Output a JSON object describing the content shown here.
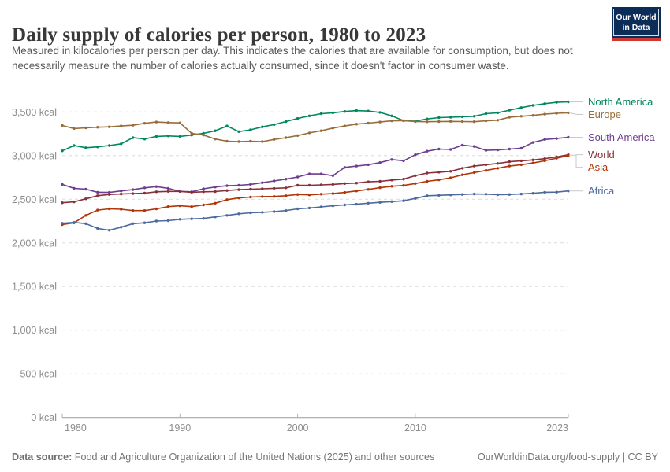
{
  "header": {
    "title": "Daily supply of calories per person, 1980 to 2023",
    "subtitle": "Measured in kilocalories per person per day. This indicates the calories that are available for consumption, but does not necessarily measure the number of calories actually consumed, since it doesn't factor in consumer waste.",
    "logo": {
      "line1": "Our World",
      "line2": "in Data",
      "bg_color": "#0d2d59",
      "stripe_color": "#cf3832"
    }
  },
  "chart_data": {
    "type": "line",
    "title": "Daily supply of calories per person, 1980 to 2023",
    "unit": "kcal",
    "grid": "horizontal-dashed",
    "legend_position": "right",
    "xlim": [
      1980,
      2023
    ],
    "ylim": [
      0,
      3500
    ],
    "x": [
      1980,
      1981,
      1982,
      1983,
      1984,
      1985,
      1986,
      1987,
      1988,
      1989,
      1990,
      1991,
      1992,
      1993,
      1994,
      1995,
      1996,
      1997,
      1998,
      1999,
      2000,
      2001,
      2002,
      2003,
      2004,
      2005,
      2006,
      2007,
      2008,
      2009,
      2010,
      2011,
      2012,
      2013,
      2014,
      2015,
      2016,
      2017,
      2018,
      2019,
      2020,
      2021,
      2022,
      2023
    ],
    "series": [
      {
        "name": "North America",
        "color": "#00875E",
        "values": [
          3055,
          3115,
          3090,
          3100,
          3115,
          3135,
          3205,
          3190,
          3220,
          3225,
          3220,
          3235,
          3255,
          3285,
          3340,
          3275,
          3295,
          3330,
          3355,
          3390,
          3425,
          3455,
          3480,
          3490,
          3505,
          3515,
          3510,
          3495,
          3455,
          3400,
          3395,
          3420,
          3435,
          3440,
          3445,
          3450,
          3480,
          3490,
          3520,
          3550,
          3575,
          3595,
          3610,
          3615
        ]
      },
      {
        "name": "Europe",
        "color": "#996D39",
        "values": [
          3345,
          3310,
          3318,
          3325,
          3330,
          3340,
          3348,
          3370,
          3385,
          3378,
          3375,
          3255,
          3235,
          3190,
          3165,
          3160,
          3165,
          3160,
          3185,
          3205,
          3230,
          3260,
          3285,
          3315,
          3340,
          3360,
          3372,
          3385,
          3398,
          3400,
          3390,
          3388,
          3390,
          3392,
          3390,
          3388,
          3398,
          3405,
          3440,
          3450,
          3460,
          3475,
          3485,
          3490
        ]
      },
      {
        "name": "South America",
        "color": "#6D3E91",
        "values": [
          2670,
          2625,
          2615,
          2580,
          2578,
          2595,
          2610,
          2630,
          2645,
          2625,
          2590,
          2585,
          2620,
          2640,
          2655,
          2660,
          2670,
          2690,
          2710,
          2730,
          2755,
          2790,
          2790,
          2770,
          2865,
          2880,
          2895,
          2920,
          2955,
          2940,
          3010,
          3050,
          3075,
          3070,
          3120,
          3105,
          3060,
          3065,
          3075,
          3085,
          3150,
          3185,
          3195,
          3210
        ]
      },
      {
        "name": "World",
        "color": "#883039",
        "values": [
          2460,
          2470,
          2505,
          2540,
          2555,
          2560,
          2565,
          2570,
          2585,
          2590,
          2590,
          2580,
          2585,
          2588,
          2600,
          2610,
          2615,
          2620,
          2625,
          2630,
          2660,
          2660,
          2665,
          2670,
          2680,
          2685,
          2700,
          2705,
          2720,
          2730,
          2770,
          2800,
          2810,
          2820,
          2855,
          2880,
          2895,
          2910,
          2930,
          2940,
          2950,
          2965,
          2985,
          3010
        ]
      },
      {
        "name": "Asia",
        "color": "#B13507",
        "values": [
          2210,
          2230,
          2315,
          2375,
          2390,
          2385,
          2370,
          2370,
          2390,
          2415,
          2425,
          2415,
          2435,
          2455,
          2495,
          2515,
          2525,
          2530,
          2532,
          2540,
          2555,
          2550,
          2558,
          2565,
          2578,
          2595,
          2612,
          2632,
          2648,
          2658,
          2680,
          2705,
          2722,
          2745,
          2780,
          2805,
          2830,
          2855,
          2880,
          2895,
          2915,
          2940,
          2970,
          3000
        ]
      },
      {
        "name": "Africa",
        "color": "#4C6A9C",
        "values": [
          2225,
          2235,
          2220,
          2165,
          2145,
          2180,
          2220,
          2230,
          2250,
          2255,
          2270,
          2275,
          2280,
          2298,
          2315,
          2333,
          2345,
          2350,
          2358,
          2370,
          2390,
          2400,
          2412,
          2425,
          2435,
          2443,
          2455,
          2465,
          2473,
          2483,
          2510,
          2540,
          2545,
          2550,
          2555,
          2560,
          2558,
          2552,
          2555,
          2560,
          2568,
          2580,
          2582,
          2595
        ]
      }
    ],
    "yticks": [
      {
        "value": 0,
        "label": "0 kcal"
      },
      {
        "value": 500,
        "label": "500 kcal"
      },
      {
        "value": 1000,
        "label": "1,000 kcal"
      },
      {
        "value": 1500,
        "label": "1,500 kcal"
      },
      {
        "value": 2000,
        "label": "2,000 kcal"
      },
      {
        "value": 2500,
        "label": "2,500 kcal"
      },
      {
        "value": 3000,
        "label": "3,000 kcal"
      },
      {
        "value": 3500,
        "label": "3,500 kcal"
      }
    ],
    "xticks": [
      {
        "value": 1980,
        "label": "1980"
      },
      {
        "value": 1990,
        "label": "1990"
      },
      {
        "value": 2000,
        "label": "2000"
      },
      {
        "value": 2010,
        "label": "2010"
      },
      {
        "value": 2023,
        "label": "2023"
      }
    ]
  },
  "footer": {
    "source_label": "Data source:",
    "source_text": " Food and Agriculture Organization of the United Nations (2025) and other sources",
    "link": "OurWorldinData.org/food-supply",
    "separator": " | ",
    "license": "CC BY"
  }
}
